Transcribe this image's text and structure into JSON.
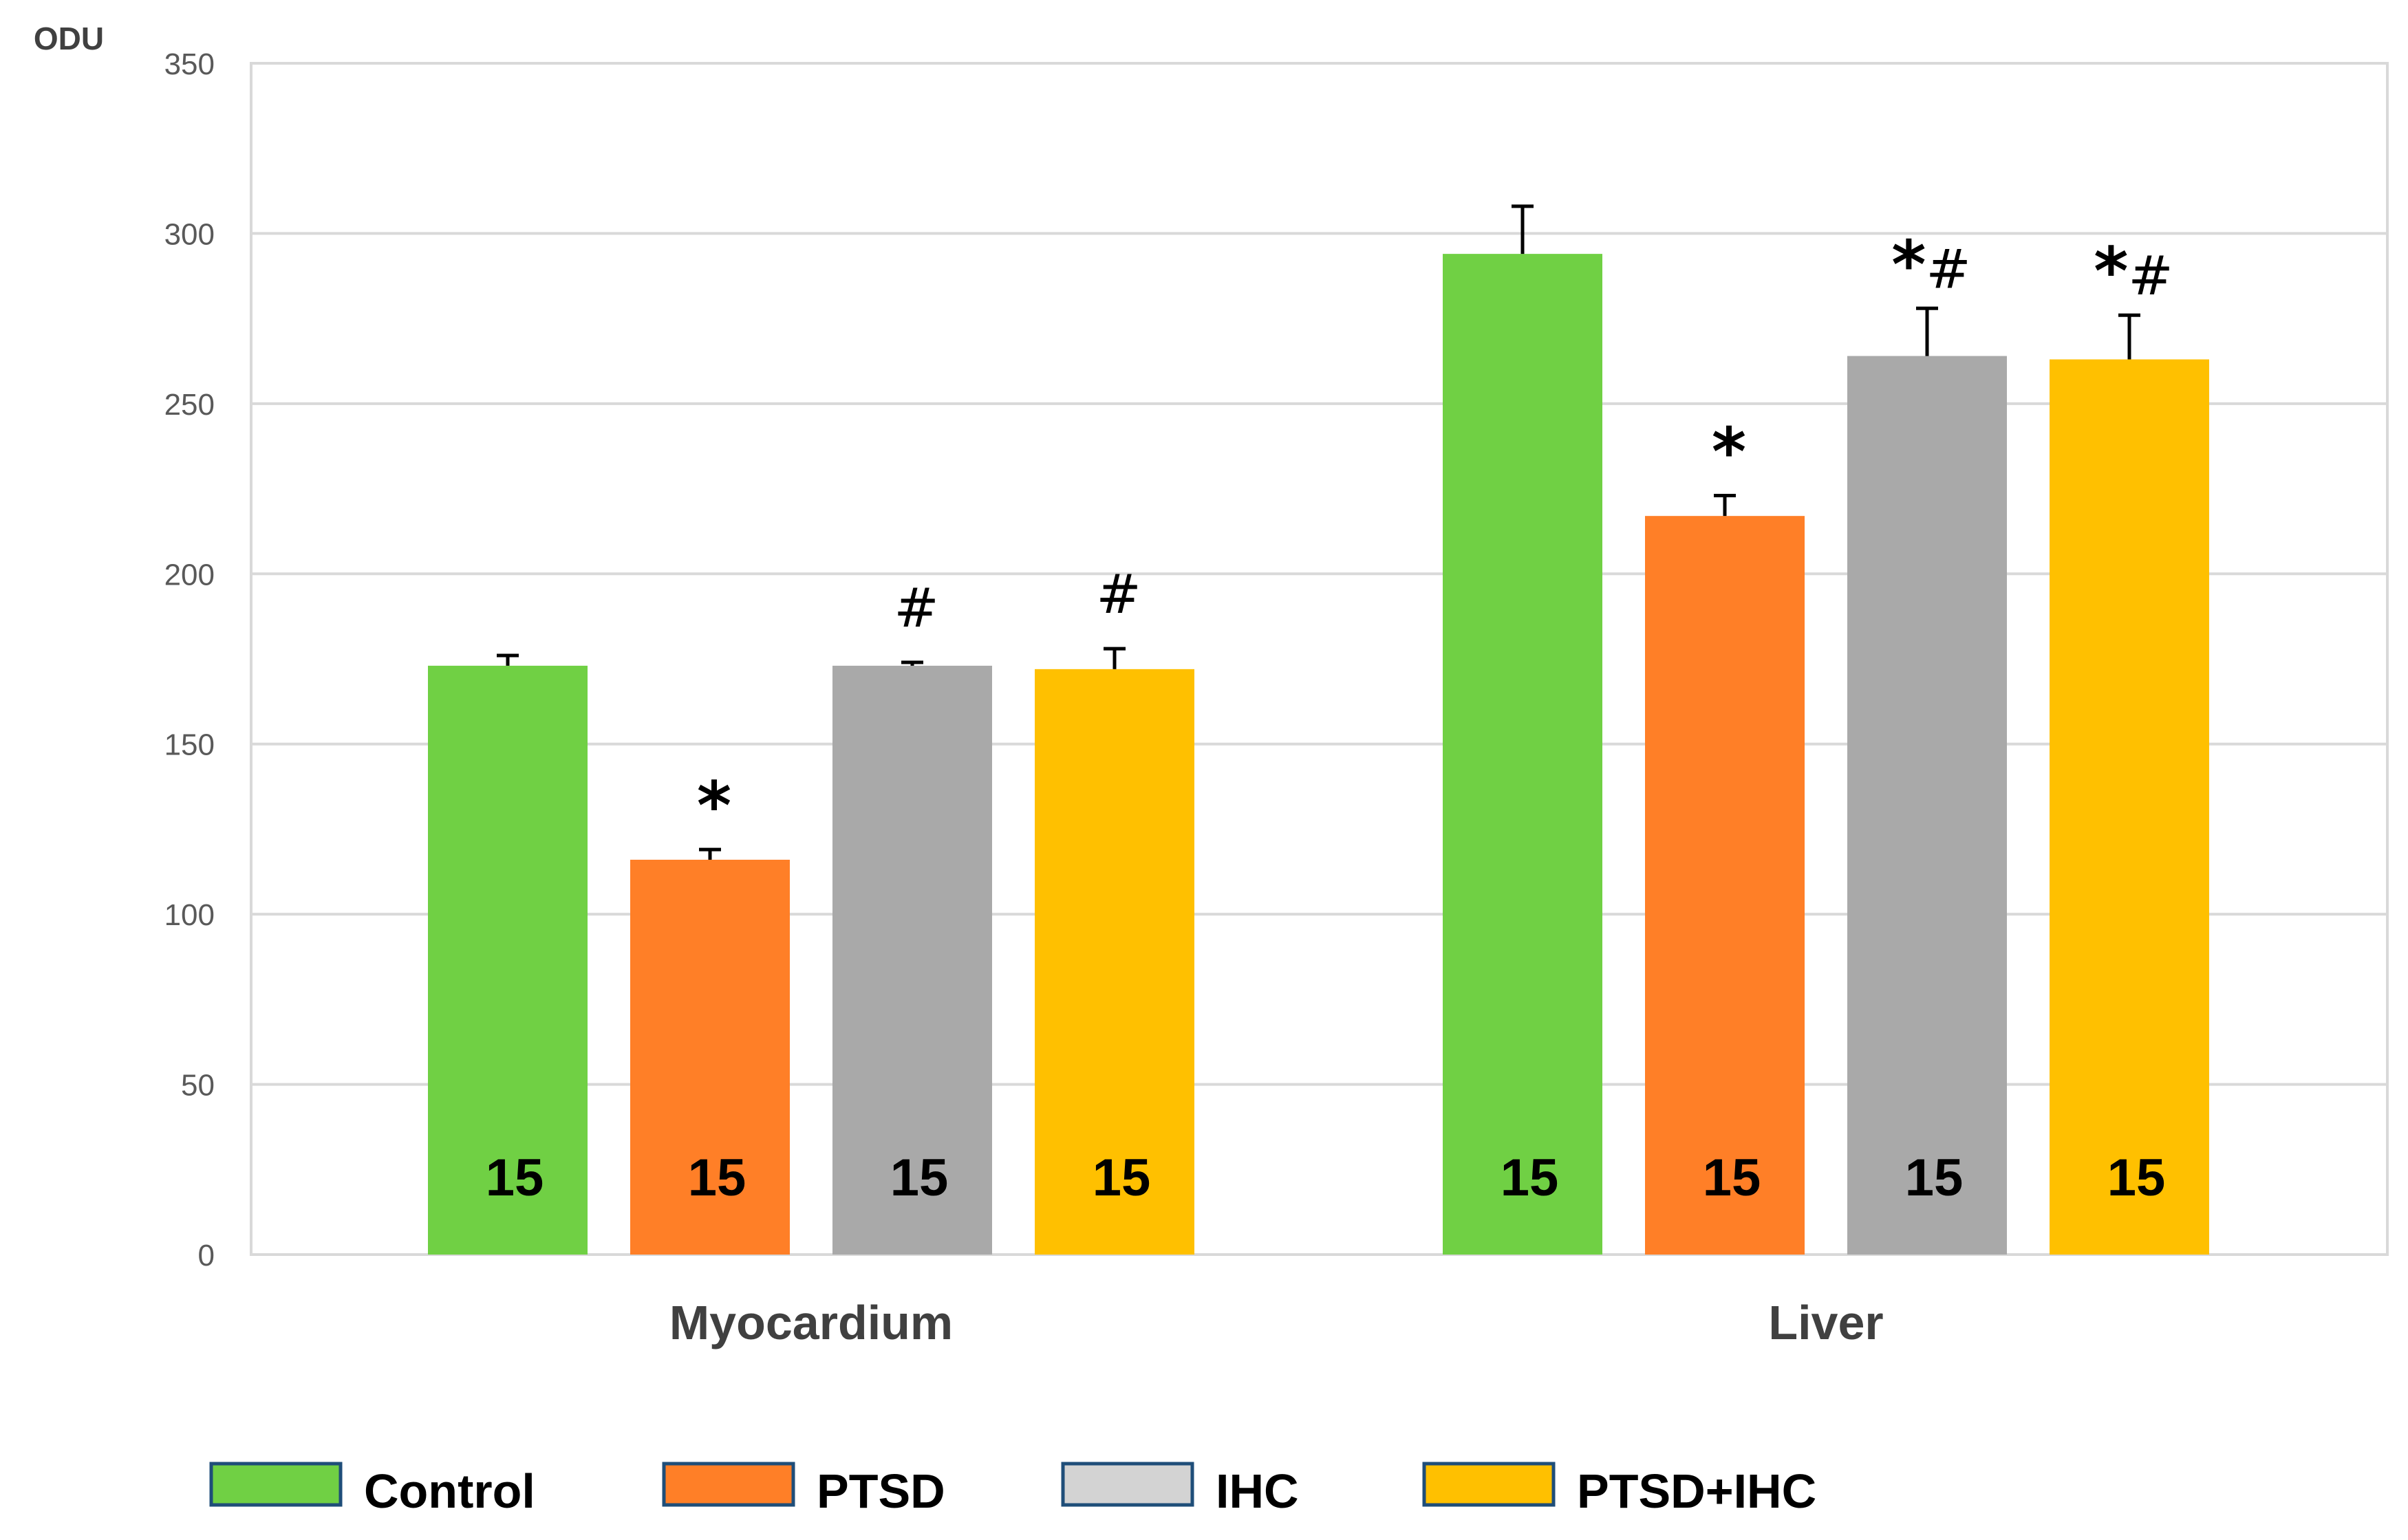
{
  "chart_data": {
    "type": "bar",
    "title": "",
    "ylabel": "ODU",
    "xlabel": "",
    "ylim": [
      0,
      350
    ],
    "yticks": [
      0,
      50,
      100,
      150,
      200,
      250,
      300,
      350
    ],
    "grid": true,
    "legend_position": "bottom",
    "categories": [
      "Myocardium",
      "Liver"
    ],
    "series": [
      {
        "name": "Control",
        "color": "#70D044",
        "values": [
          173,
          294
        ],
        "errors": [
          3,
          14
        ],
        "n": [
          "15",
          "15"
        ],
        "marks": [
          "",
          ""
        ]
      },
      {
        "name": "PTSD",
        "color": "#FF7F27",
        "values": [
          116,
          217
        ],
        "errors": [
          3,
          6
        ],
        "n": [
          "15",
          "15"
        ],
        "marks": [
          "*",
          "*"
        ]
      },
      {
        "name": "IHC",
        "color": "#A9A9A9",
        "values": [
          173,
          264
        ],
        "errors": [
          1,
          14
        ],
        "n": [
          "15",
          "15"
        ],
        "marks": [
          "#",
          "*#"
        ]
      },
      {
        "name": "PTSD+IHC",
        "color": "#FFC000",
        "values": [
          172,
          263
        ],
        "errors": [
          6,
          13
        ],
        "n": [
          "15",
          "15"
        ],
        "marks": [
          "#",
          "*#"
        ]
      }
    ],
    "legend_swatch_colors": [
      "#70D044",
      "#FF7F27",
      "#D3D3D3",
      "#FFC000"
    ]
  }
}
